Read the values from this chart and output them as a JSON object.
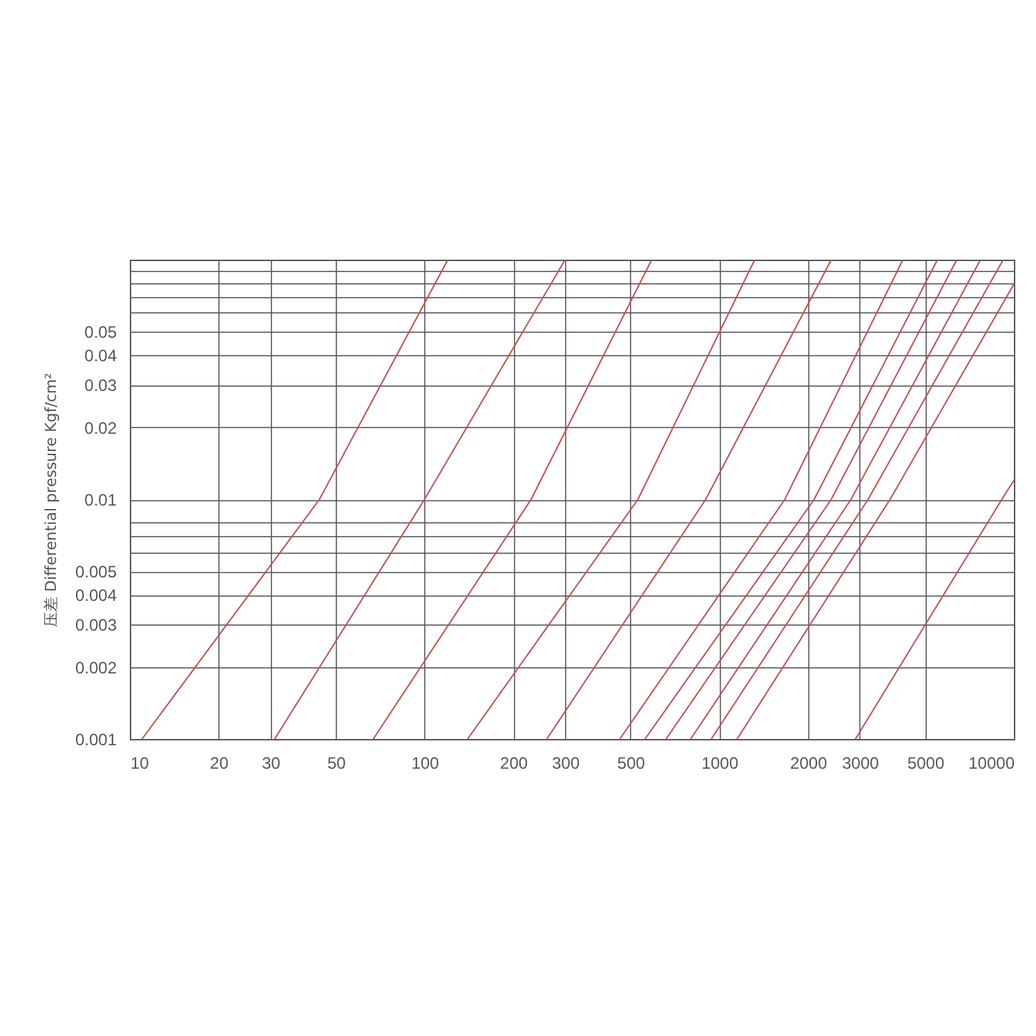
{
  "chart_data": {
    "type": "line",
    "ylabel": "压差 Differential pressure Kgf/cm²",
    "log": "xy",
    "grid": true,
    "legend": false,
    "marker": "none",
    "line_style": "solid",
    "xlim": [
      10,
      10000
    ],
    "xticks": [
      10,
      20,
      30,
      50,
      100,
      200,
      300,
      500,
      1000,
      2000,
      3000,
      5000,
      10000
    ],
    "ylim": [
      0.001,
      0.1
    ],
    "yticks": [
      0.001,
      0.002,
      0.003,
      0.004,
      0.005,
      {
        "value": 0.006,
        "label": null
      },
      {
        "value": 0.007,
        "label": null
      },
      {
        "value": 0.008,
        "label": null
      },
      0.01,
      0.02,
      0.03,
      0.04,
      0.05,
      {
        "value": 0.06,
        "label": null
      },
      {
        "value": 0.07,
        "label": null
      },
      {
        "value": 0.08,
        "label": null
      },
      {
        "value": 0.09,
        "label": null
      },
      {
        "value": 0.1,
        "label": null
      }
    ],
    "series": [
      {
        "color": "#c0504d",
        "x": [
          11,
          44,
          120
        ],
        "values": [
          0.001,
          0.01,
          0.1
        ]
      },
      {
        "color": "#c0504d",
        "x": [
          31,
          100,
          300
        ],
        "values": [
          0.001,
          0.01,
          0.1
        ]
      },
      {
        "color": "#c0504d",
        "x": [
          67,
          230,
          590
        ],
        "values": [
          0.001,
          0.01,
          0.1
        ]
      },
      {
        "color": "#c0504d",
        "x": [
          140,
          530,
          1320
        ],
        "values": [
          0.001,
          0.01,
          0.1
        ]
      },
      {
        "color": "#c0504d",
        "x": [
          260,
          900,
          2400
        ],
        "values": [
          0.001,
          0.01,
          0.1
        ]
      },
      {
        "color": "#c0504d",
        "x": [
          460,
          1670,
          4200
        ],
        "values": [
          0.001,
          0.01,
          0.1
        ]
      },
      {
        "color": "#c0504d",
        "x": [
          560,
          2100,
          5500
        ],
        "values": [
          0.001,
          0.01,
          0.1
        ]
      },
      {
        "color": "#c0504d",
        "x": [
          660,
          2400,
          6400
        ],
        "values": [
          0.001,
          0.01,
          0.1
        ]
      },
      {
        "color": "#c0504d",
        "x": [
          800,
          2800,
          7700
        ],
        "values": [
          0.001,
          0.01,
          0.1
        ]
      },
      {
        "color": "#c0504d",
        "x": [
          940,
          3200,
          9200
        ],
        "values": [
          0.001,
          0.01,
          0.1
        ]
      },
      {
        "color": "#c0504d",
        "x": [
          1150,
          3800,
          10000
        ],
        "values": [
          0.001,
          0.01,
          0.079
        ]
      },
      {
        "color": "#c0504d",
        "x": [
          2900,
          9100,
          10000
        ],
        "values": [
          0.001,
          0.01,
          0.012
        ]
      }
    ]
  }
}
